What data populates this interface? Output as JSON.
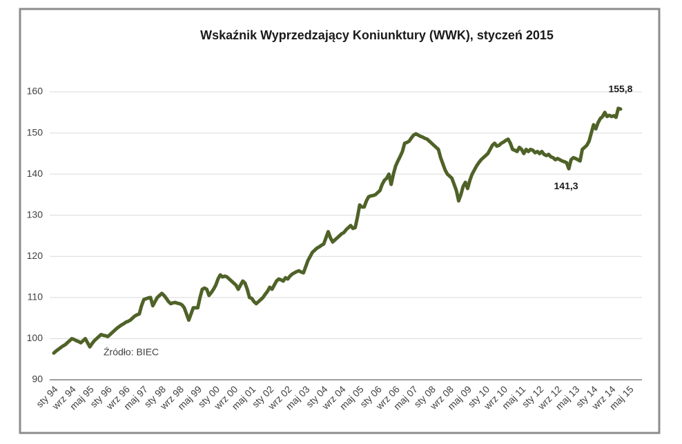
{
  "chart_data": {
    "type": "line",
    "title": "Wskaźnik Wyprzedzający Koniunktury (WWK), styczeń 2015",
    "source": "Źródło: BIEC",
    "color": "#4f6228",
    "ylim": [
      90,
      160
    ],
    "yticks": [
      90,
      100,
      110,
      120,
      130,
      140,
      150,
      160
    ],
    "grid": true,
    "categories": [
      "sty 94",
      null,
      null,
      null,
      null,
      null,
      null,
      null,
      "wrz 94",
      null,
      null,
      null,
      null,
      null,
      null,
      null,
      "maj 95",
      null,
      null,
      null,
      null,
      null,
      null,
      null,
      "sty 96",
      null,
      null,
      null,
      null,
      null,
      null,
      null,
      "wrz 96",
      null,
      null,
      null,
      null,
      null,
      null,
      null,
      "maj 97",
      null,
      null,
      null,
      null,
      null,
      null,
      null,
      "sty 98",
      null,
      null,
      null,
      null,
      null,
      null,
      null,
      "wrz 98",
      null,
      null,
      null,
      null,
      null,
      null,
      null,
      "maj 99",
      null,
      null,
      null,
      null,
      null,
      null,
      null,
      "sty 00",
      null,
      null,
      null,
      null,
      null,
      null,
      null,
      "wrz 00",
      null,
      null,
      null,
      null,
      null,
      null,
      null,
      "maj 01",
      null,
      null,
      null,
      null,
      null,
      null,
      null,
      "sty 02",
      null,
      null,
      null,
      null,
      null,
      null,
      null,
      "wrz 02",
      null,
      null,
      null,
      null,
      null,
      null,
      null,
      "maj 03",
      null,
      null,
      null,
      null,
      null,
      null,
      null,
      "sty 04",
      null,
      null,
      null,
      null,
      null,
      null,
      null,
      "wrz 04",
      null,
      null,
      null,
      null,
      null,
      null,
      null,
      "maj 05",
      null,
      null,
      null,
      null,
      null,
      null,
      null,
      "sty 06",
      null,
      null,
      null,
      null,
      null,
      null,
      null,
      "wrz 06",
      null,
      null,
      null,
      null,
      null,
      null,
      null,
      "maj 07",
      null,
      null,
      null,
      null,
      null,
      null,
      null,
      "sty 08",
      null,
      null,
      null,
      null,
      null,
      null,
      null,
      "wrz 08",
      null,
      null,
      null,
      null,
      null,
      null,
      null,
      "maj 09",
      null,
      null,
      null,
      null,
      null,
      null,
      null,
      "sty 10",
      null,
      null,
      null,
      null,
      null,
      null,
      null,
      "wrz 10",
      null,
      null,
      null,
      null,
      null,
      null,
      null,
      "maj 11",
      null,
      null,
      null,
      null,
      null,
      null,
      null,
      "sty 12",
      null,
      null,
      null,
      null,
      null,
      null,
      null,
      "wrz 12",
      null,
      null,
      null,
      null,
      null,
      null,
      null,
      "maj 13",
      null,
      null,
      null,
      null,
      null,
      null,
      null,
      "sty 14",
      null,
      null,
      null,
      null,
      null,
      null,
      null,
      "wrz 14",
      null,
      null,
      null,
      null,
      null,
      null,
      null,
      "maj 15"
    ],
    "values": [
      96.5,
      97.0,
      97.4,
      97.8,
      98.2,
      98.5,
      99.0,
      99.5,
      100.0,
      99.8,
      99.5,
      99.3,
      99.0,
      99.5,
      100.0,
      99.0,
      98.0,
      98.8,
      99.5,
      100.0,
      100.5,
      101.0,
      100.8,
      100.7,
      100.5,
      101.0,
      101.5,
      102.0,
      102.5,
      102.9,
      103.3,
      103.6,
      104.0,
      104.2,
      104.5,
      105.0,
      105.5,
      105.8,
      106.0,
      108.0,
      109.5,
      109.7,
      109.9,
      110.0,
      108.0,
      109.0,
      110.0,
      110.5,
      111.0,
      110.5,
      109.8,
      109.0,
      108.5,
      108.7,
      108.8,
      108.6,
      108.5,
      108.2,
      107.5,
      106.0,
      104.5,
      106.0,
      107.5,
      107.5,
      107.5,
      110.0,
      112.0,
      112.3,
      112.0,
      110.5,
      111.2,
      112.0,
      113.0,
      114.5,
      115.5,
      115.0,
      115.2,
      115.0,
      114.5,
      114.0,
      113.5,
      113.0,
      112.0,
      113.0,
      114.0,
      113.5,
      112.0,
      110.0,
      109.8,
      109.0,
      108.5,
      109.0,
      109.5,
      110.0,
      110.8,
      111.5,
      112.5,
      112.0,
      113.0,
      114.0,
      114.5,
      114.3,
      114.0,
      114.8,
      114.5,
      115.2,
      115.7,
      116.0,
      116.3,
      116.5,
      116.2,
      116.0,
      117.5,
      119.0,
      120.0,
      121.0,
      121.5,
      122.0,
      122.3,
      122.7,
      123.0,
      124.5,
      126.0,
      124.5,
      123.5,
      124.0,
      124.5,
      125.0,
      125.5,
      125.8,
      126.5,
      127.0,
      127.5,
      126.8,
      127.0,
      129.5,
      132.5,
      132.0,
      132.0,
      133.5,
      134.5,
      134.7,
      134.8,
      135.0,
      135.5,
      136.0,
      137.5,
      138.5,
      139.0,
      140.0,
      137.5,
      140.0,
      142.0,
      143.2,
      144.3,
      145.5,
      147.5,
      147.7,
      148.0,
      148.8,
      149.5,
      149.8,
      149.5,
      149.2,
      149.0,
      148.7,
      148.5,
      148.0,
      147.5,
      147.0,
      146.5,
      146.0,
      144.0,
      142.5,
      141.0,
      140.0,
      139.5,
      139.0,
      137.5,
      136.0,
      133.5,
      135.0,
      137.0,
      138.0,
      136.5,
      138.5,
      140.0,
      141.0,
      142.0,
      142.8,
      143.5,
      144.0,
      144.5,
      145.0,
      146.0,
      147.0,
      147.5,
      146.8,
      147.0,
      147.5,
      147.8,
      148.2,
      148.5,
      147.5,
      146.0,
      145.8,
      145.5,
      146.5,
      146.0,
      145.0,
      146.0,
      145.5,
      146.0,
      145.8,
      145.2,
      145.5,
      145.0,
      145.5,
      144.8,
      144.5,
      144.8,
      144.2,
      144.0,
      143.5,
      143.8,
      143.5,
      143.2,
      143.0,
      142.8,
      141.3,
      143.5,
      144.0,
      143.8,
      143.5,
      143.2,
      146.0,
      146.5,
      147.0,
      148.0,
      150.0,
      152.0,
      151.0,
      152.5,
      153.5,
      154.0,
      155.0,
      154.0,
      154.3,
      154.0,
      154.2,
      153.8,
      156.0,
      155.8,
      null,
      null,
      null,
      null
    ],
    "value_labels": {
      "229": "141,3",
      "252": "155,8"
    }
  }
}
